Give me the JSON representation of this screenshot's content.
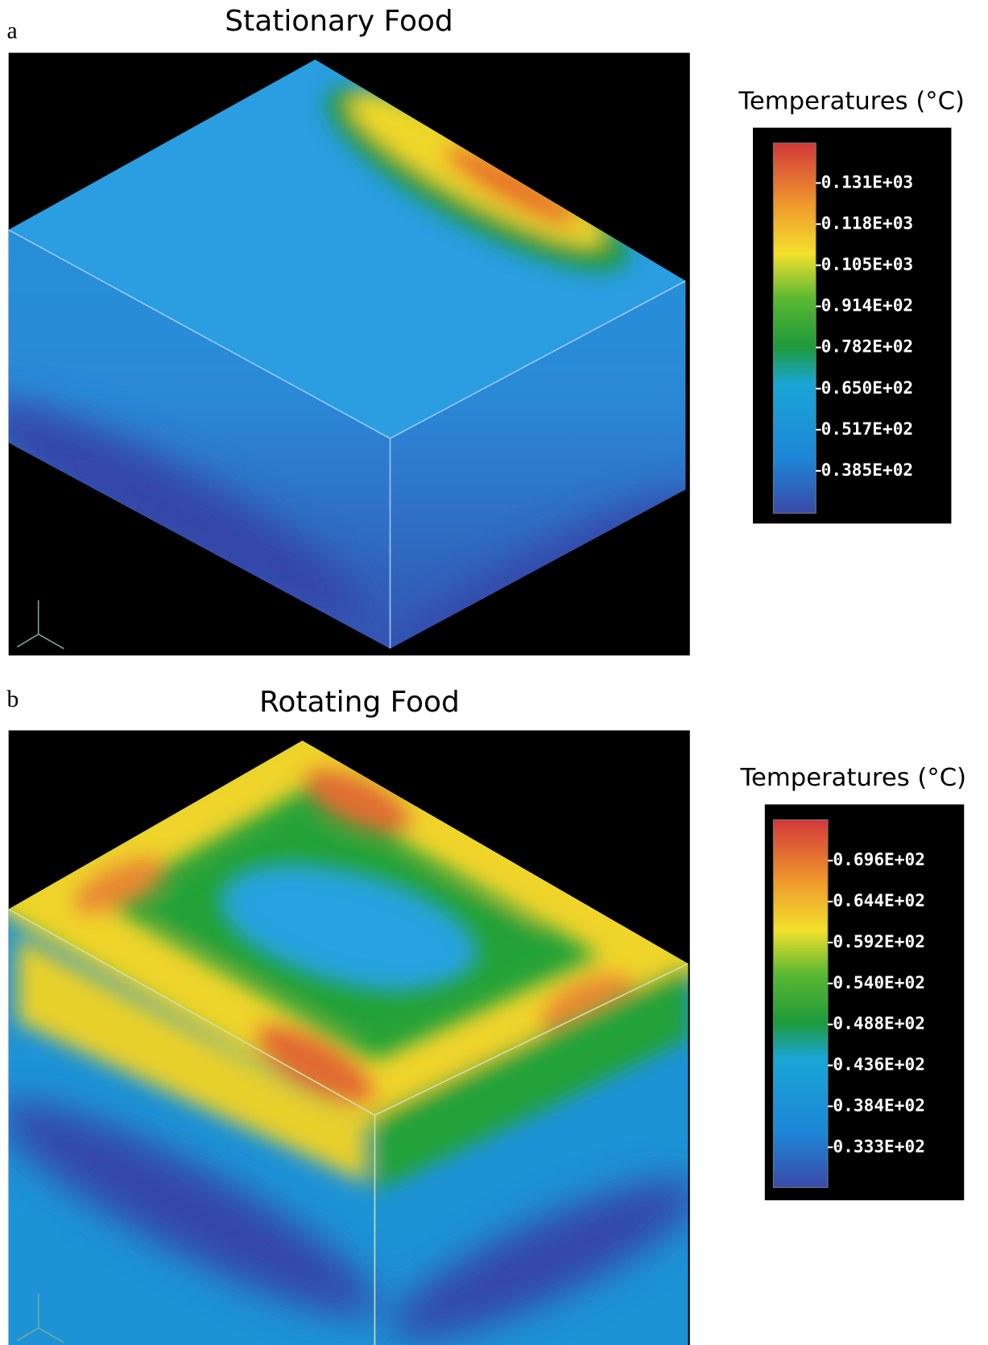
{
  "panels": [
    {
      "label": "a",
      "title": "Stationary Food",
      "legend": {
        "title": "Temperatures (°C)",
        "labels": [
          "0.131E+03",
          "0.118E+03",
          "0.105E+03",
          "0.914E+02",
          "0.782E+02",
          "0.650E+02",
          "0.517E+02",
          "0.385E+02"
        ]
      }
    },
    {
      "label": "b",
      "title": "Rotating Food",
      "legend": {
        "title": "Temperatures (°C)",
        "labels": [
          "0.696E+02",
          "0.644E+02",
          "0.592E+02",
          "0.540E+02",
          "0.488E+02",
          "0.436E+02",
          "0.384E+02",
          "0.333E+02"
        ]
      }
    }
  ]
}
